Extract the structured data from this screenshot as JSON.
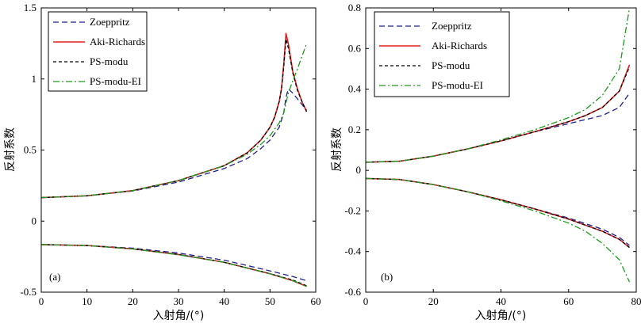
{
  "chart_data": [
    {
      "type": "line",
      "panel_label": "(a)",
      "xlabel": "入射角/(°)",
      "ylabel": "反射系数",
      "xlim": [
        0,
        60
      ],
      "ylim": [
        -0.5,
        1.5
      ],
      "xticks": [
        0,
        10,
        20,
        30,
        40,
        50,
        60
      ],
      "yticks": [
        -0.5,
        0,
        0.5,
        1,
        1.5
      ],
      "ytick_labels": [
        "-0.5",
        "0",
        "0.5",
        "1",
        "1.5"
      ],
      "legend_position": "top-left",
      "series": [
        {
          "name": "Zoeppritz",
          "color": "#1f1f8f",
          "dash": "dashed",
          "branches": [
            [
              [
                0,
                0.165
              ],
              [
                10,
                0.178
              ],
              [
                20,
                0.212
              ],
              [
                30,
                0.275
              ],
              [
                40,
                0.37
              ],
              [
                45,
                0.44
              ],
              [
                48,
                0.51
              ],
              [
                50,
                0.57
              ],
              [
                52,
                0.66
              ],
              [
                53,
                0.76
              ],
              [
                53.5,
                0.87
              ],
              [
                54,
                0.93
              ],
              [
                55,
                0.9
              ],
              [
                56,
                0.86
              ],
              [
                57,
                0.82
              ],
              [
                58,
                0.78
              ]
            ],
            [
              [
                0,
                -0.165
              ],
              [
                10,
                -0.172
              ],
              [
                20,
                -0.19
              ],
              [
                30,
                -0.225
              ],
              [
                40,
                -0.275
              ],
              [
                50,
                -0.35
              ],
              [
                55,
                -0.39
              ],
              [
                58,
                -0.42
              ]
            ]
          ]
        },
        {
          "name": "Aki-Richards",
          "color": "#e02020",
          "dash": "solid",
          "branches": [
            [
              [
                0,
                0.165
              ],
              [
                10,
                0.178
              ],
              [
                20,
                0.215
              ],
              [
                30,
                0.285
              ],
              [
                40,
                0.39
              ],
              [
                45,
                0.48
              ],
              [
                48,
                0.57
              ],
              [
                50,
                0.66
              ],
              [
                51,
                0.73
              ],
              [
                52,
                0.84
              ],
              [
                52.5,
                0.93
              ],
              [
                53,
                1.1
              ],
              [
                53.5,
                1.32
              ],
              [
                54,
                1.25
              ],
              [
                55,
                1.05
              ],
              [
                56,
                0.93
              ],
              [
                57,
                0.84
              ],
              [
                58,
                0.77
              ]
            ],
            [
              [
                0,
                -0.165
              ],
              [
                10,
                -0.172
              ],
              [
                20,
                -0.195
              ],
              [
                30,
                -0.235
              ],
              [
                40,
                -0.29
              ],
              [
                50,
                -0.37
              ],
              [
                55,
                -0.42
              ],
              [
                58,
                -0.46
              ]
            ]
          ]
        },
        {
          "name": "PS-modu",
          "color": "#000000",
          "dash": "short-dashed",
          "branches": [
            [
              [
                0,
                0.165
              ],
              [
                10,
                0.178
              ],
              [
                20,
                0.215
              ],
              [
                30,
                0.285
              ],
              [
                40,
                0.39
              ],
              [
                45,
                0.48
              ],
              [
                48,
                0.57
              ],
              [
                50,
                0.66
              ],
              [
                51,
                0.73
              ],
              [
                52,
                0.84
              ],
              [
                52.5,
                0.93
              ],
              [
                53,
                1.08
              ],
              [
                53.5,
                1.28
              ],
              [
                54,
                1.22
              ],
              [
                55,
                1.04
              ],
              [
                56,
                0.92
              ],
              [
                57,
                0.84
              ],
              [
                58,
                0.77
              ]
            ],
            [
              [
                0,
                -0.165
              ],
              [
                10,
                -0.172
              ],
              [
                20,
                -0.195
              ],
              [
                30,
                -0.235
              ],
              [
                40,
                -0.29
              ],
              [
                50,
                -0.37
              ],
              [
                55,
                -0.415
              ],
              [
                58,
                -0.455
              ]
            ]
          ]
        },
        {
          "name": "PS-modu-EI",
          "color": "#1e9a1e",
          "dash": "dash-dot",
          "branches": [
            [
              [
                0,
                0.165
              ],
              [
                10,
                0.178
              ],
              [
                20,
                0.215
              ],
              [
                30,
                0.285
              ],
              [
                40,
                0.39
              ],
              [
                45,
                0.47
              ],
              [
                48,
                0.54
              ],
              [
                50,
                0.6
              ],
              [
                52,
                0.69
              ],
              [
                53,
                0.76
              ],
              [
                54,
                0.9
              ],
              [
                55,
                0.99
              ],
              [
                56,
                1.07
              ],
              [
                57,
                1.16
              ],
              [
                58,
                1.25
              ]
            ],
            [
              [
                0,
                -0.165
              ],
              [
                10,
                -0.172
              ],
              [
                20,
                -0.195
              ],
              [
                30,
                -0.237
              ],
              [
                40,
                -0.29
              ],
              [
                50,
                -0.37
              ],
              [
                55,
                -0.42
              ],
              [
                58,
                -0.46
              ]
            ]
          ]
        }
      ]
    },
    {
      "type": "line",
      "panel_label": "(b)",
      "xlabel": "入射角/(°)",
      "ylabel": "反射系数",
      "xlim": [
        0,
        80
      ],
      "ylim": [
        -0.6,
        0.8
      ],
      "xticks": [
        0,
        20,
        40,
        60,
        80
      ],
      "yticks": [
        -0.6,
        -0.4,
        -0.2,
        0,
        0.2,
        0.4,
        0.6,
        0.8
      ],
      "ytick_labels": [
        "-0.6",
        "-0.4",
        "-0.2",
        "0",
        "0.2",
        "0.4",
        "0.6",
        "0.8"
      ],
      "legend_position": "top-left",
      "series": [
        {
          "name": "Zoeppritz",
          "color": "#1f1f8f",
          "dash": "dashed",
          "branches": [
            [
              [
                0,
                0.04
              ],
              [
                10,
                0.045
              ],
              [
                20,
                0.07
              ],
              [
                30,
                0.105
              ],
              [
                40,
                0.145
              ],
              [
                50,
                0.19
              ],
              [
                60,
                0.23
              ],
              [
                65,
                0.25
              ],
              [
                70,
                0.27
              ],
              [
                75,
                0.31
              ],
              [
                78,
                0.38
              ]
            ],
            [
              [
                0,
                -0.04
              ],
              [
                10,
                -0.045
              ],
              [
                20,
                -0.07
              ],
              [
                30,
                -0.105
              ],
              [
                40,
                -0.145
              ],
              [
                50,
                -0.19
              ],
              [
                60,
                -0.235
              ],
              [
                70,
                -0.29
              ],
              [
                75,
                -0.33
              ],
              [
                78,
                -0.37
              ]
            ]
          ]
        },
        {
          "name": "Aki-Richards",
          "color": "#e02020",
          "dash": "solid",
          "branches": [
            [
              [
                0,
                0.04
              ],
              [
                10,
                0.045
              ],
              [
                20,
                0.07
              ],
              [
                30,
                0.105
              ],
              [
                40,
                0.145
              ],
              [
                50,
                0.19
              ],
              [
                60,
                0.24
              ],
              [
                65,
                0.27
              ],
              [
                70,
                0.31
              ],
              [
                75,
                0.39
              ],
              [
                78,
                0.52
              ]
            ],
            [
              [
                0,
                -0.04
              ],
              [
                10,
                -0.045
              ],
              [
                20,
                -0.07
              ],
              [
                30,
                -0.105
              ],
              [
                40,
                -0.145
              ],
              [
                50,
                -0.19
              ],
              [
                60,
                -0.24
              ],
              [
                70,
                -0.3
              ],
              [
                75,
                -0.34
              ],
              [
                78,
                -0.38
              ]
            ]
          ]
        },
        {
          "name": "PS-modu",
          "color": "#000000",
          "dash": "short-dashed",
          "branches": [
            [
              [
                0,
                0.04
              ],
              [
                10,
                0.045
              ],
              [
                20,
                0.07
              ],
              [
                30,
                0.105
              ],
              [
                40,
                0.145
              ],
              [
                50,
                0.19
              ],
              [
                60,
                0.24
              ],
              [
                65,
                0.27
              ],
              [
                70,
                0.31
              ],
              [
                75,
                0.39
              ],
              [
                78,
                0.51
              ]
            ],
            [
              [
                0,
                -0.04
              ],
              [
                10,
                -0.045
              ],
              [
                20,
                -0.07
              ],
              [
                30,
                -0.105
              ],
              [
                40,
                -0.145
              ],
              [
                50,
                -0.19
              ],
              [
                60,
                -0.24
              ],
              [
                70,
                -0.3
              ],
              [
                75,
                -0.34
              ],
              [
                78,
                -0.38
              ]
            ]
          ]
        },
        {
          "name": "PS-modu-EI",
          "color": "#1e9a1e",
          "dash": "dash-dot",
          "branches": [
            [
              [
                0,
                0.04
              ],
              [
                10,
                0.045
              ],
              [
                20,
                0.07
              ],
              [
                30,
                0.105
              ],
              [
                40,
                0.15
              ],
              [
                50,
                0.2
              ],
              [
                60,
                0.26
              ],
              [
                65,
                0.3
              ],
              [
                70,
                0.37
              ],
              [
                75,
                0.5
              ],
              [
                78,
                0.8
              ]
            ],
            [
              [
                0,
                -0.04
              ],
              [
                10,
                -0.045
              ],
              [
                20,
                -0.07
              ],
              [
                30,
                -0.105
              ],
              [
                40,
                -0.15
              ],
              [
                50,
                -0.2
              ],
              [
                60,
                -0.26
              ],
              [
                65,
                -0.3
              ],
              [
                70,
                -0.36
              ],
              [
                75,
                -0.44
              ],
              [
                78,
                -0.55
              ]
            ]
          ]
        }
      ]
    }
  ]
}
